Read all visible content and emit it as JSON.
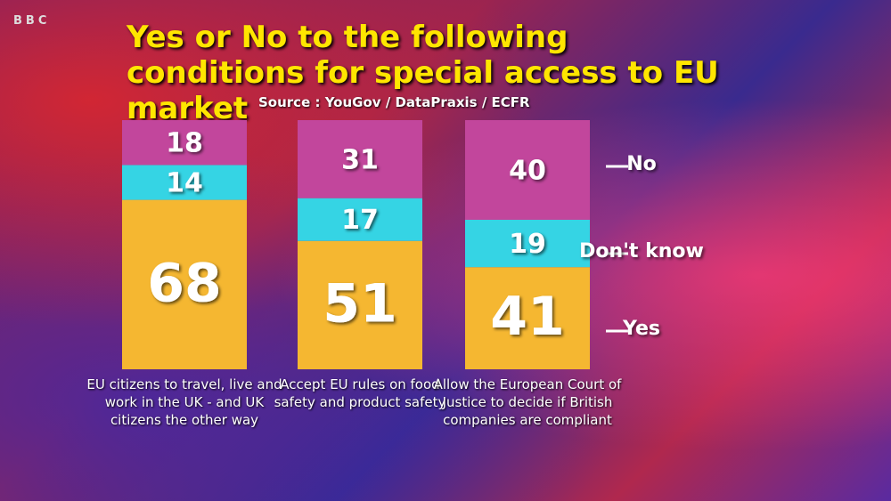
{
  "channel": "BBC",
  "chart_data": {
    "type": "stacked-bar",
    "title": "Yes or No to the following conditions for special access to EU market",
    "subtitle": "Source : YouGov / DataPraxis / ECFR",
    "categories": [
      "EU citizens to travel, live and work in the UK - and UK citizens the other way",
      "Accept EU rules on food safety and product safety",
      "Allow the European Court of Justice to decide if British companies are compliant"
    ],
    "series": [
      {
        "name": "Yes",
        "color": "#f5b731",
        "values": [
          68,
          51,
          41
        ]
      },
      {
        "name": "Don't know",
        "color": "#35d4e4",
        "values": [
          14,
          17,
          19
        ]
      },
      {
        "name": "No",
        "color": "#c2469c",
        "values": [
          18,
          31,
          40
        ]
      }
    ],
    "legend": "right"
  }
}
